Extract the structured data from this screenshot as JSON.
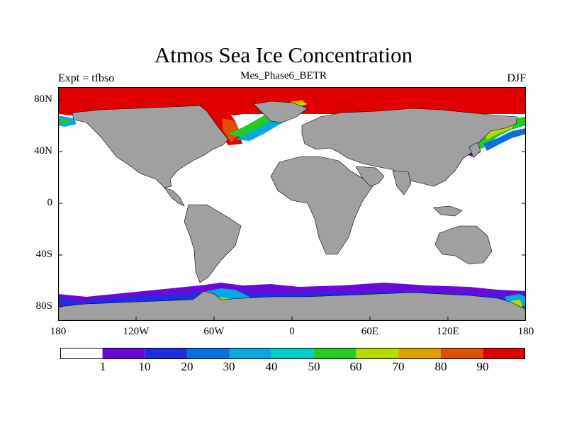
{
  "title": "Atmos Sea Ice Concentration",
  "subtitle": "Mes_Phase6_BETR",
  "left_label": "Expt = tfbso",
  "right_label": "DJF",
  "colors": {
    "land": "#a0a0a0",
    "ocean": "#ffffff",
    "frame": "#000000"
  },
  "y_ticks": [
    "80N",
    "40N",
    "0",
    "40S",
    "80S"
  ],
  "x_ticks": [
    "180",
    "120W",
    "60W",
    "0",
    "60E",
    "120E",
    "180"
  ],
  "colorbar": {
    "colors": [
      "#ffffff",
      "#6a0ad8",
      "#1e2de0",
      "#0a70e0",
      "#08a8e0",
      "#00ccc8",
      "#22cc22",
      "#b4dc00",
      "#e0a000",
      "#e05000",
      "#e00000"
    ],
    "labels": [
      "1",
      "10",
      "20",
      "30",
      "40",
      "50",
      "60",
      "70",
      "80",
      "90"
    ]
  }
}
